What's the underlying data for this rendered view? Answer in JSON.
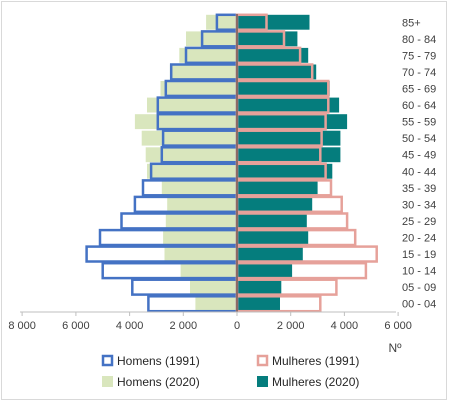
{
  "chart_data": {
    "type": "bar",
    "orientation": "horizontal",
    "subtype": "population-pyramid",
    "categories": [
      "00 - 04",
      "05 - 09",
      "10 - 14",
      "15 - 19",
      "20 - 24",
      "25 - 29",
      "30 - 34",
      "35 - 39",
      "40 - 44",
      "45 - 49",
      "50 - 54",
      "55 - 59",
      "60 - 64",
      "65 - 69",
      "70 - 74",
      "75 - 79",
      "80 - 84",
      "85+"
    ],
    "series": [
      {
        "name": "Homens (1991)",
        "side": "left",
        "style": "outline",
        "color": "#4472c4",
        "values": [
          3300,
          3900,
          5000,
          5600,
          5100,
          4300,
          3800,
          3500,
          3200,
          2800,
          2750,
          2950,
          2950,
          2650,
          2450,
          1900,
          1300,
          750
        ]
      },
      {
        "name": "Mulheres (1991)",
        "side": "right",
        "style": "outline",
        "color": "#e6a19a",
        "values": [
          3100,
          3700,
          4800,
          5200,
          4400,
          4100,
          3900,
          3500,
          3300,
          3100,
          3150,
          3300,
          3400,
          3400,
          2800,
          2350,
          1750,
          1100
        ]
      },
      {
        "name": "Homens (2020)",
        "side": "left",
        "style": "fill",
        "color": "#d9e6bd",
        "values": [
          1550,
          1750,
          2100,
          2700,
          2750,
          2650,
          2600,
          2800,
          3350,
          3400,
          3550,
          3800,
          3350,
          2850,
          2500,
          2150,
          1900,
          1150
        ]
      },
      {
        "name": "Mulheres (2020)",
        "side": "right",
        "style": "fill",
        "color": "#057d7d",
        "values": [
          1600,
          1650,
          2050,
          2450,
          2650,
          2600,
          2800,
          3000,
          3550,
          3850,
          3850,
          4100,
          3800,
          3450,
          2950,
          2650,
          2250,
          2700
        ]
      }
    ],
    "x_ticks": [
      "8 000",
      "6 000",
      "4 000",
      "2 000",
      "0",
      "2 000",
      "4 000",
      "6 000"
    ],
    "xlim": [
      -8000,
      6000
    ],
    "xlabel": "Nº",
    "grid": false,
    "legend_position": "bottom"
  }
}
